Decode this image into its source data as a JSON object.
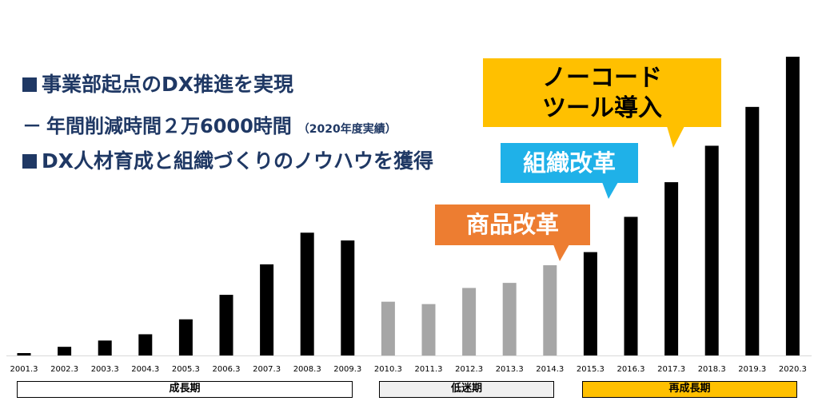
{
  "headlines": {
    "line1_marker": "■",
    "line1": "事業部起点のDX推進を実現",
    "line2_marker": "－",
    "line2": "年間削減時間２万6000時間",
    "line2_note": "（2020年度実績）",
    "line3_marker": "■",
    "line3": "DX人材育成と組織づくりのノウハウを獲得"
  },
  "callouts": {
    "nocode_line1": "ノーコード",
    "nocode_line2": "ツール導入",
    "organization": "組織改革",
    "product": "商品改革"
  },
  "periods": {
    "growth": "成長期",
    "stagnation": "低迷期",
    "regrowth": "再成長期"
  },
  "colors": {
    "headline": "#1f3864",
    "bar_dark": "#000000",
    "bar_gray": "#a6a6a6",
    "nocode": "#ffc000",
    "organization": "#1fb1e8",
    "product": "#ed7d31",
    "regrowth_box": "#ffc000",
    "stagnation_box": "#f0f0f0"
  },
  "chart_data": {
    "type": "bar",
    "title": "",
    "xlabel": "",
    "ylabel": "",
    "grid": false,
    "legend": "none",
    "ylim": [
      0,
      100
    ],
    "categories": [
      "2001.3",
      "2002.3",
      "2003.3",
      "2004.3",
      "2005.3",
      "2006.3",
      "2007.3",
      "2008.3",
      "2009.3",
      "2010.3",
      "2011.3",
      "2012.3",
      "2013.3",
      "2014.3",
      "2015.3",
      "2016.3",
      "2017.3",
      "2018.3",
      "2019.3",
      "2020.3"
    ],
    "values": [
      0.8,
      2.9,
      5.0,
      7.1,
      12.1,
      20.3,
      30.5,
      41.1,
      38.5,
      18.0,
      17.2,
      22.6,
      24.3,
      30.2,
      34.6,
      46.4,
      58.0,
      70.2,
      83.2,
      100.0
    ],
    "bar_groups": [
      "dark",
      "dark",
      "dark",
      "dark",
      "dark",
      "dark",
      "dark",
      "dark",
      "dark",
      "gray",
      "gray",
      "gray",
      "gray",
      "gray",
      "dark",
      "dark",
      "dark",
      "dark",
      "dark",
      "dark"
    ]
  }
}
